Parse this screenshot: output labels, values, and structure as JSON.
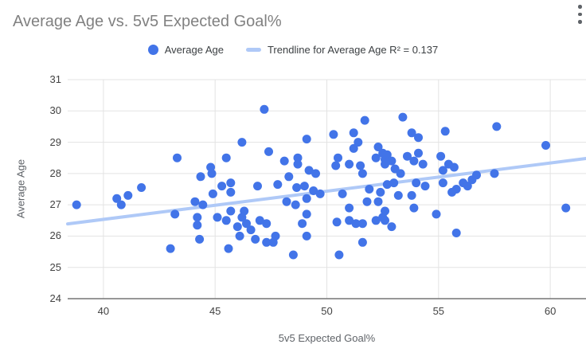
{
  "title": "Average Age vs. 5v5 Expected Goal%",
  "menu": {
    "icon": "kebab-menu-icon"
  },
  "legend": [
    {
      "label": "Average Age",
      "marker": "circle",
      "color": "#4274e8"
    },
    {
      "label": "Trendline for Average Age R² = 0.137",
      "marker": "dash",
      "color": "#afc9f7"
    }
  ],
  "colors": {
    "point": "#4274e8",
    "trendline": "#afc9f7",
    "gridline": "#e3e3e3",
    "axis_line": "#757575",
    "tick_label": "#424242",
    "axis_title": "#5f6368",
    "chart_title": "#818181"
  },
  "chart_data": {
    "type": "scatter",
    "title": "Average Age vs. 5v5 Expected Goal%",
    "xlabel": "5v5 Expected Goal%",
    "ylabel": "Average Age",
    "xlim": [
      38.4,
      61.6
    ],
    "ylim": [
      24,
      31
    ],
    "x_ticks": [
      40,
      45,
      50,
      55,
      60
    ],
    "y_ticks": [
      24,
      25,
      26,
      27,
      28,
      29,
      30,
      31
    ],
    "grid": true,
    "legend_position": "top",
    "point_color": "#4274e8",
    "series": [
      {
        "name": "Average Age",
        "points": [
          [
            38.8,
            27.0
          ],
          [
            40.6,
            27.2
          ],
          [
            40.8,
            27.0
          ],
          [
            41.1,
            27.3
          ],
          [
            41.7,
            27.55
          ],
          [
            43.0,
            25.6
          ],
          [
            43.2,
            26.7
          ],
          [
            43.3,
            28.5
          ],
          [
            44.1,
            27.1
          ],
          [
            44.2,
            26.6
          ],
          [
            44.2,
            26.35
          ],
          [
            44.3,
            25.9
          ],
          [
            44.35,
            27.9
          ],
          [
            44.45,
            27.0
          ],
          [
            44.8,
            28.2
          ],
          [
            44.85,
            28.0
          ],
          [
            44.9,
            27.35
          ],
          [
            45.1,
            26.6
          ],
          [
            45.3,
            27.6
          ],
          [
            45.5,
            28.5
          ],
          [
            45.5,
            26.5
          ],
          [
            45.6,
            25.6
          ],
          [
            45.7,
            27.7
          ],
          [
            45.7,
            27.4
          ],
          [
            45.7,
            26.8
          ],
          [
            46.0,
            26.3
          ],
          [
            46.1,
            26.0
          ],
          [
            46.2,
            29.0
          ],
          [
            46.2,
            26.6
          ],
          [
            46.3,
            26.8
          ],
          [
            46.4,
            26.4
          ],
          [
            46.6,
            26.2
          ],
          [
            46.8,
            25.9
          ],
          [
            46.9,
            27.6
          ],
          [
            47.0,
            26.5
          ],
          [
            47.2,
            30.05
          ],
          [
            47.3,
            26.4
          ],
          [
            47.3,
            25.8
          ],
          [
            47.4,
            28.7
          ],
          [
            47.6,
            25.8
          ],
          [
            47.7,
            26.0
          ],
          [
            47.8,
            27.65
          ],
          [
            48.1,
            28.4
          ],
          [
            48.2,
            27.1
          ],
          [
            48.3,
            27.9
          ],
          [
            48.5,
            25.4
          ],
          [
            48.6,
            27.0
          ],
          [
            48.65,
            27.55
          ],
          [
            48.7,
            28.5
          ],
          [
            48.7,
            28.3
          ],
          [
            48.9,
            26.4
          ],
          [
            49.0,
            27.6
          ],
          [
            49.1,
            26.7
          ],
          [
            49.1,
            26.0
          ],
          [
            49.1,
            27.2
          ],
          [
            49.1,
            29.1
          ],
          [
            49.2,
            28.1
          ],
          [
            49.4,
            27.45
          ],
          [
            49.5,
            28.0
          ],
          [
            49.7,
            27.35
          ],
          [
            50.3,
            29.25
          ],
          [
            50.4,
            28.25
          ],
          [
            50.45,
            26.45
          ],
          [
            50.5,
            28.5
          ],
          [
            50.55,
            25.4
          ],
          [
            50.7,
            27.35
          ],
          [
            51.0,
            28.3
          ],
          [
            51.0,
            26.9
          ],
          [
            51.0,
            26.5
          ],
          [
            51.2,
            28.8
          ],
          [
            51.2,
            29.3
          ],
          [
            51.3,
            26.4
          ],
          [
            51.4,
            29.0
          ],
          [
            51.5,
            28.25
          ],
          [
            51.6,
            28.0
          ],
          [
            51.6,
            26.4
          ],
          [
            51.6,
            25.8
          ],
          [
            51.7,
            29.7
          ],
          [
            51.8,
            27.1
          ],
          [
            51.9,
            27.5
          ],
          [
            52.2,
            28.5
          ],
          [
            52.2,
            26.5
          ],
          [
            52.3,
            28.85
          ],
          [
            52.3,
            27.1
          ],
          [
            52.4,
            27.4
          ],
          [
            52.5,
            28.65
          ],
          [
            52.5,
            26.6
          ],
          [
            52.6,
            28.45
          ],
          [
            52.6,
            28.3
          ],
          [
            52.6,
            26.8
          ],
          [
            52.6,
            26.5
          ],
          [
            52.7,
            28.6
          ],
          [
            52.7,
            27.65
          ],
          [
            52.9,
            28.4
          ],
          [
            52.9,
            26.3
          ],
          [
            53.0,
            27.7
          ],
          [
            53.05,
            28.15
          ],
          [
            53.2,
            27.3
          ],
          [
            53.3,
            28.0
          ],
          [
            53.4,
            29.8
          ],
          [
            53.6,
            28.55
          ],
          [
            53.8,
            29.3
          ],
          [
            53.8,
            27.3
          ],
          [
            53.9,
            28.4
          ],
          [
            53.9,
            26.9
          ],
          [
            54.0,
            27.7
          ],
          [
            54.1,
            29.15
          ],
          [
            54.1,
            28.65
          ],
          [
            54.3,
            28.3
          ],
          [
            54.4,
            27.6
          ],
          [
            54.9,
            26.7
          ],
          [
            55.1,
            28.55
          ],
          [
            55.2,
            28.1
          ],
          [
            55.2,
            27.7
          ],
          [
            55.3,
            29.35
          ],
          [
            55.45,
            28.3
          ],
          [
            55.6,
            27.4
          ],
          [
            55.7,
            28.2
          ],
          [
            55.8,
            27.5
          ],
          [
            55.8,
            26.1
          ],
          [
            56.1,
            27.7
          ],
          [
            56.3,
            27.6
          ],
          [
            56.5,
            27.8
          ],
          [
            56.7,
            27.95
          ],
          [
            57.5,
            28.0
          ],
          [
            57.6,
            29.5
          ],
          [
            59.8,
            28.9
          ],
          [
            60.7,
            26.9
          ]
        ]
      }
    ],
    "trendline": {
      "name": "Trendline for Average Age",
      "r_squared": 0.137,
      "color": "#afc9f7",
      "x1": 38.4,
      "y1": 26.39,
      "x2": 61.6,
      "y2": 28.48
    }
  }
}
